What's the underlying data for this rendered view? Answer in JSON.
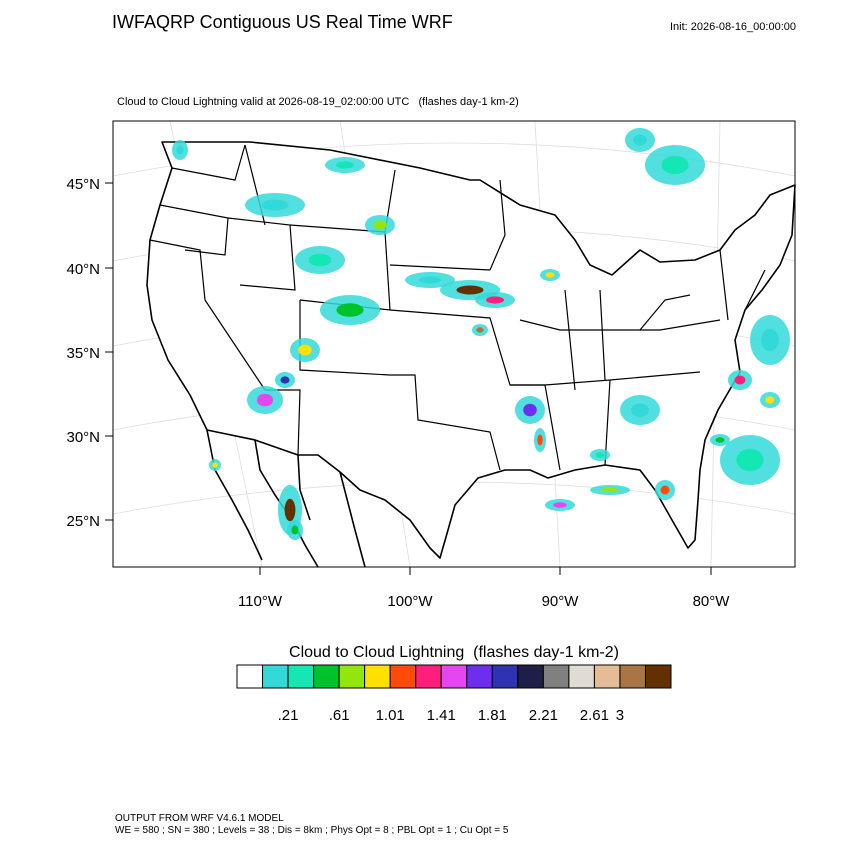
{
  "header": {
    "title": "IWFAQRP Contiguous US Real Time WRF",
    "init": "Init: 2026-08-16_00:00:00",
    "subtitle": "Cloud to Cloud Lightning valid at 2026-08-19_02:00:00 UTC   (flashes day-1 km-2)"
  },
  "map": {
    "lat_labels": [
      "45°N",
      "40°N",
      "35°N",
      "30°N",
      "25°N"
    ],
    "lon_labels": [
      "110°W",
      "100°W",
      "90°W",
      "80°W"
    ]
  },
  "legend": {
    "title": "Cloud to Cloud Lightning  (flashes day-1 km-2)",
    "colors": [
      "#ffffff",
      "#33d9d9",
      "#14e6b4",
      "#00c22a",
      "#93e60c",
      "#ffe000",
      "#ff4a0a",
      "#ff1f7a",
      "#e646f0",
      "#6e2ef0",
      "#2e33b4",
      "#1e1e46",
      "#808080",
      "#e0dcd4",
      "#e6bc96",
      "#aa7446",
      "#643000"
    ],
    "labels": [
      ".21",
      ".61",
      "1.01",
      "1.41",
      "1.81",
      "2.21",
      "2.61",
      "3"
    ]
  },
  "footer": {
    "line1": "OUTPUT FROM WRF V4.6.1 MODEL",
    "line2": "WE = 580 ; SN = 380 ; Levels = 38 ; Dis = 8km ; Phys Opt = 8 ; PBL Opt = 1 ; Cu Opt = 5"
  }
}
